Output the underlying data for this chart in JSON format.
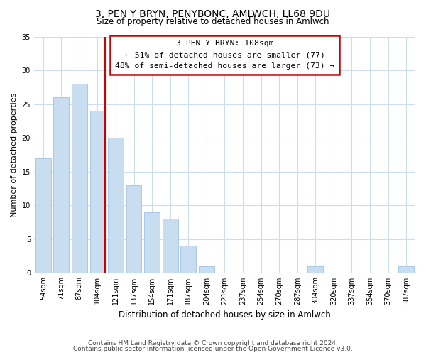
{
  "title": "3, PEN Y BRYN, PENYBONC, AMLWCH, LL68 9DU",
  "subtitle": "Size of property relative to detached houses in Amlwch",
  "xlabel": "Distribution of detached houses by size in Amlwch",
  "ylabel": "Number of detached properties",
  "bar_labels": [
    "54sqm",
    "71sqm",
    "87sqm",
    "104sqm",
    "121sqm",
    "137sqm",
    "154sqm",
    "171sqm",
    "187sqm",
    "204sqm",
    "221sqm",
    "237sqm",
    "254sqm",
    "270sqm",
    "287sqm",
    "304sqm",
    "320sqm",
    "337sqm",
    "354sqm",
    "370sqm",
    "387sqm"
  ],
  "bar_values": [
    17,
    26,
    28,
    24,
    20,
    13,
    9,
    8,
    4,
    1,
    0,
    0,
    0,
    0,
    0,
    1,
    0,
    0,
    0,
    0,
    1
  ],
  "bar_color": "#c8ddf0",
  "bar_edge_color": "#a8c8e8",
  "vline_x_idx": 3,
  "vline_color": "#cc0000",
  "ylim": [
    0,
    35
  ],
  "yticks": [
    0,
    5,
    10,
    15,
    20,
    25,
    30,
    35
  ],
  "annotation_line1": "3 PEN Y BRYN: 108sqm",
  "annotation_line2": "← 51% of detached houses are smaller (77)",
  "annotation_line3": "48% of semi-detached houses are larger (73) →",
  "annotation_box_edge": "#cc0000",
  "footer_line1": "Contains HM Land Registry data © Crown copyright and database right 2024.",
  "footer_line2": "Contains public sector information licensed under the Open Government Licence v3.0.",
  "bg_color": "#ffffff",
  "grid_color": "#ccdded"
}
